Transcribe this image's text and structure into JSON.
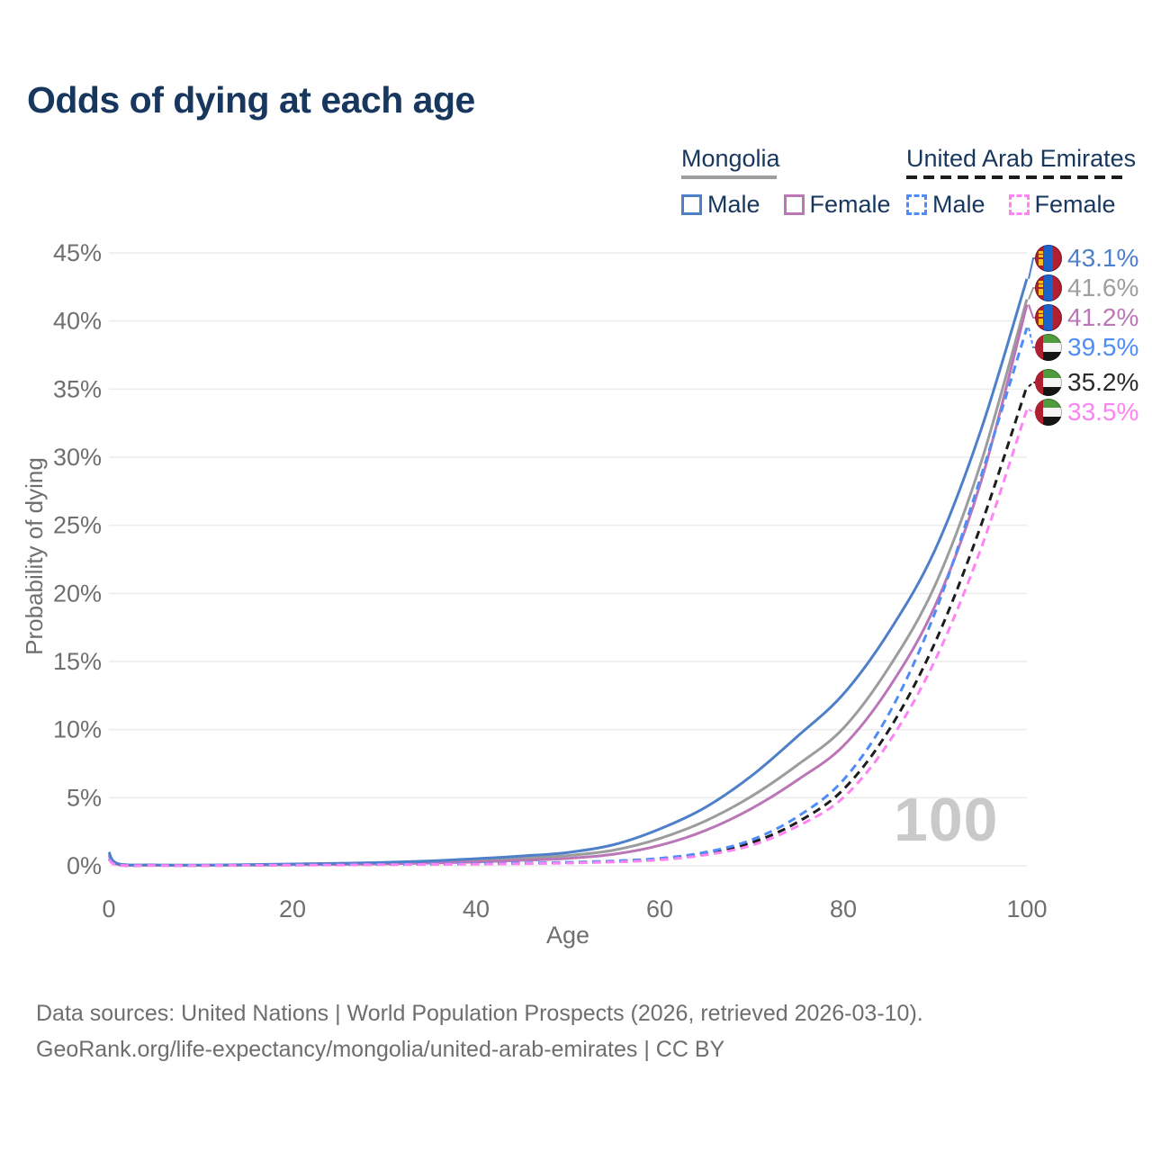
{
  "title": "Odds of dying at each age",
  "legend": {
    "groups": [
      {
        "name": "Mongolia",
        "line_style": "solid",
        "underline_color": "#9e9e9e",
        "items": [
          {
            "label": "Male",
            "color": "#4e7fc9"
          },
          {
            "label": "Female",
            "color": "#bb76b8"
          }
        ]
      },
      {
        "name": "United Arab Emirates",
        "line_style": "dashed",
        "underline_color": "#1c1c1c",
        "items": [
          {
            "label": "Male",
            "color": "#4e8df6"
          },
          {
            "label": "Female",
            "color": "#fe83f3"
          }
        ]
      }
    ]
  },
  "chart_data": {
    "type": "line",
    "title": "Odds of dying at each age",
    "xlabel": "Age",
    "ylabel": "Probability of dying",
    "xlim": [
      0,
      100
    ],
    "ylim": [
      0,
      45
    ],
    "grid": "horizontal",
    "legend_position": "top-right",
    "x_ticks": [
      {
        "v": 0,
        "label": "0"
      },
      {
        "v": 20,
        "label": "20"
      },
      {
        "v": 40,
        "label": "40"
      },
      {
        "v": 60,
        "label": "60"
      },
      {
        "v": 80,
        "label": "80"
      },
      {
        "v": 100,
        "label": "100"
      }
    ],
    "y_ticks": [
      {
        "v": 0,
        "label": "0%"
      },
      {
        "v": 5,
        "label": "5%"
      },
      {
        "v": 10,
        "label": "10%"
      },
      {
        "v": 15,
        "label": "15%"
      },
      {
        "v": 20,
        "label": "20%"
      },
      {
        "v": 25,
        "label": "25%"
      },
      {
        "v": 30,
        "label": "30%"
      },
      {
        "v": 35,
        "label": "35%"
      },
      {
        "v": 40,
        "label": "40%"
      },
      {
        "v": 45,
        "label": "45%"
      }
    ],
    "series": [
      {
        "id": "mongolia-total",
        "name": "Mongolia",
        "sex": "both",
        "color": "#9c9c9c",
        "dashed": false,
        "points": [
          [
            0,
            0.85
          ],
          [
            1,
            0.12
          ],
          [
            5,
            0.05
          ],
          [
            10,
            0.04
          ],
          [
            15,
            0.06
          ],
          [
            20,
            0.1
          ],
          [
            25,
            0.14
          ],
          [
            30,
            0.19
          ],
          [
            35,
            0.27
          ],
          [
            40,
            0.39
          ],
          [
            45,
            0.55
          ],
          [
            50,
            0.75
          ],
          [
            55,
            1.15
          ],
          [
            60,
            2.0
          ],
          [
            65,
            3.3
          ],
          [
            70,
            5.1
          ],
          [
            75,
            7.4
          ],
          [
            80,
            10.1
          ],
          [
            85,
            14.6
          ],
          [
            90,
            20.6
          ],
          [
            95,
            29.6
          ],
          [
            100,
            41.6
          ]
        ]
      },
      {
        "id": "mongolia-female",
        "name": "Mongolia Female",
        "sex": "female",
        "color": "#bb76b8",
        "dashed": false,
        "points": [
          [
            0,
            0.75
          ],
          [
            1,
            0.1
          ],
          [
            5,
            0.04
          ],
          [
            10,
            0.03
          ],
          [
            15,
            0.05
          ],
          [
            20,
            0.07
          ],
          [
            25,
            0.1
          ],
          [
            30,
            0.14
          ],
          [
            35,
            0.2
          ],
          [
            40,
            0.28
          ],
          [
            45,
            0.4
          ],
          [
            50,
            0.55
          ],
          [
            55,
            0.85
          ],
          [
            60,
            1.5
          ],
          [
            65,
            2.6
          ],
          [
            70,
            4.2
          ],
          [
            75,
            6.3
          ],
          [
            80,
            8.8
          ],
          [
            85,
            13.1
          ],
          [
            90,
            19.1
          ],
          [
            95,
            28.2
          ],
          [
            100,
            41.2
          ]
        ]
      },
      {
        "id": "mongolia-male",
        "name": "Mongolia Male",
        "sex": "male",
        "color": "#4e7fc9",
        "dashed": false,
        "points": [
          [
            0,
            1.0
          ],
          [
            1,
            0.15
          ],
          [
            5,
            0.06
          ],
          [
            10,
            0.05
          ],
          [
            15,
            0.08
          ],
          [
            20,
            0.13
          ],
          [
            25,
            0.18
          ],
          [
            30,
            0.25
          ],
          [
            35,
            0.36
          ],
          [
            40,
            0.52
          ],
          [
            45,
            0.72
          ],
          [
            50,
            0.98
          ],
          [
            55,
            1.55
          ],
          [
            60,
            2.7
          ],
          [
            65,
            4.3
          ],
          [
            70,
            6.6
          ],
          [
            75,
            9.5
          ],
          [
            80,
            12.6
          ],
          [
            85,
            17.2
          ],
          [
            90,
            23.2
          ],
          [
            95,
            32.0
          ],
          [
            100,
            43.1
          ]
        ]
      },
      {
        "id": "uae-total",
        "name": "United Arab Emirates",
        "sex": "both",
        "color": "#1c1c1c",
        "dashed": true,
        "points": [
          [
            0,
            0.5
          ],
          [
            1,
            0.05
          ],
          [
            5,
            0.03
          ],
          [
            10,
            0.02
          ],
          [
            15,
            0.04
          ],
          [
            20,
            0.06
          ],
          [
            25,
            0.08
          ],
          [
            30,
            0.1
          ],
          [
            35,
            0.12
          ],
          [
            40,
            0.14
          ],
          [
            45,
            0.18
          ],
          [
            50,
            0.23
          ],
          [
            55,
            0.32
          ],
          [
            60,
            0.5
          ],
          [
            65,
            0.9
          ],
          [
            70,
            1.7
          ],
          [
            75,
            3.2
          ],
          [
            80,
            5.6
          ],
          [
            85,
            10.0
          ],
          [
            90,
            16.4
          ],
          [
            95,
            25.0
          ],
          [
            100,
            35.2
          ]
        ]
      },
      {
        "id": "uae-male",
        "name": "United Arab Emirates Male",
        "sex": "male",
        "color": "#4e8df6",
        "dashed": true,
        "points": [
          [
            0,
            0.55
          ],
          [
            1,
            0.06
          ],
          [
            5,
            0.03
          ],
          [
            10,
            0.03
          ],
          [
            15,
            0.05
          ],
          [
            20,
            0.07
          ],
          [
            25,
            0.09
          ],
          [
            30,
            0.11
          ],
          [
            35,
            0.13
          ],
          [
            40,
            0.16
          ],
          [
            45,
            0.2
          ],
          [
            50,
            0.26
          ],
          [
            55,
            0.36
          ],
          [
            60,
            0.55
          ],
          [
            65,
            1.0
          ],
          [
            70,
            1.9
          ],
          [
            75,
            3.6
          ],
          [
            80,
            6.3
          ],
          [
            85,
            11.2
          ],
          [
            90,
            18.6
          ],
          [
            95,
            28.6
          ],
          [
            100,
            39.5
          ]
        ]
      },
      {
        "id": "uae-female",
        "name": "United Arab Emirates Female",
        "sex": "female",
        "color": "#fe83f3",
        "dashed": true,
        "points": [
          [
            0,
            0.45
          ],
          [
            1,
            0.05
          ],
          [
            5,
            0.02
          ],
          [
            10,
            0.02
          ],
          [
            15,
            0.03
          ],
          [
            20,
            0.05
          ],
          [
            25,
            0.06
          ],
          [
            30,
            0.08
          ],
          [
            35,
            0.1
          ],
          [
            40,
            0.12
          ],
          [
            45,
            0.15
          ],
          [
            50,
            0.2
          ],
          [
            55,
            0.28
          ],
          [
            60,
            0.43
          ],
          [
            65,
            0.8
          ],
          [
            70,
            1.5
          ],
          [
            75,
            2.9
          ],
          [
            80,
            5.0
          ],
          [
            85,
            9.1
          ],
          [
            90,
            15.1
          ],
          [
            95,
            23.3
          ],
          [
            100,
            33.5
          ]
        ]
      }
    ],
    "end_labels": [
      {
        "series": "mongolia-male",
        "value": "43.1%",
        "color": "#4e7fc9",
        "flag": "mn",
        "flag_name": "mongolia-flag"
      },
      {
        "series": "mongolia-total",
        "value": "41.6%",
        "color": "#9e9e9e",
        "flag": "mn",
        "flag_name": "mongolia-flag"
      },
      {
        "series": "mongolia-female",
        "value": "41.2%",
        "color": "#bb76b8",
        "flag": "mn",
        "flag_name": "mongolia-flag"
      },
      {
        "series": "uae-male",
        "value": "39.5%",
        "color": "#4e8df6",
        "flag": "ae",
        "flag_name": "uae-flag"
      },
      {
        "series": "uae-total",
        "value": "35.2%",
        "color": "#2a2a2a",
        "flag": "ae",
        "flag_name": "uae-flag"
      },
      {
        "series": "uae-female",
        "value": "33.5%",
        "color": "#fe83f3",
        "flag": "ae",
        "flag_name": "uae-flag"
      }
    ]
  },
  "watermark": "100",
  "footer": {
    "line1": "Data sources: United Nations | World Population Prospects (2026, retrieved 2026-03-10).",
    "line2": "GeoRank.org/life-expectancy/mongolia/united-arab-emirates | CC BY"
  }
}
